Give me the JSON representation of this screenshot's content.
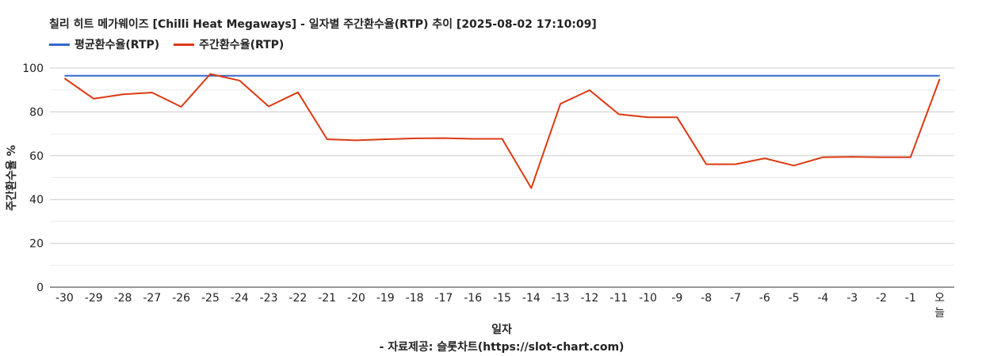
{
  "chart_data": {
    "type": "line",
    "title": "칠리 히트 메가웨이즈 [Chilli Heat Megaways] - 일자별 주간환수율(RTP) 추이 [2025-08-02 17:10:09]",
    "xlabel": "일자",
    "ylabel": "주간환수율 %",
    "source": "- 자료제공: 슬롯차트(https://slot-chart.com)",
    "categories": [
      "-30",
      "-29",
      "-28",
      "-27",
      "-26",
      "-25",
      "-24",
      "-23",
      "-22",
      "-21",
      "-20",
      "-19",
      "-18",
      "-17",
      "-16",
      "-15",
      "-14",
      "-13",
      "-12",
      "-11",
      "-10",
      "-9",
      "-8",
      "-7",
      "-6",
      "-5",
      "-4",
      "-3",
      "-2",
      "-1",
      "오늘"
    ],
    "ylim": [
      0,
      100
    ],
    "yticks": [
      0,
      20,
      40,
      60,
      80,
      100
    ],
    "legend_position": "top-left",
    "grid": true,
    "series": [
      {
        "name": "평균환수율(RTP)",
        "color": "#3366cc",
        "values": [
          96.5,
          96.5,
          96.5,
          96.5,
          96.5,
          96.5,
          96.5,
          96.5,
          96.5,
          96.5,
          96.5,
          96.5,
          96.5,
          96.5,
          96.5,
          96.5,
          96.5,
          96.5,
          96.5,
          96.5,
          96.5,
          96.5,
          96.5,
          96.5,
          96.5,
          96.5,
          96.5,
          96.5,
          96.5,
          96.5,
          96.5
        ]
      },
      {
        "name": "주간환수율(RTP)",
        "color": "#dc3912",
        "values": [
          95.3,
          86.0,
          88.0,
          88.8,
          82.3,
          97.3,
          94.3,
          82.5,
          88.9,
          67.5,
          67.0,
          67.5,
          67.9,
          68.0,
          67.7,
          67.7,
          45.2,
          83.7,
          89.9,
          78.9,
          77.5,
          77.5,
          56.1,
          56.1,
          58.8,
          55.5,
          59.3,
          59.5,
          59.3,
          59.3,
          95.0
        ]
      }
    ]
  }
}
